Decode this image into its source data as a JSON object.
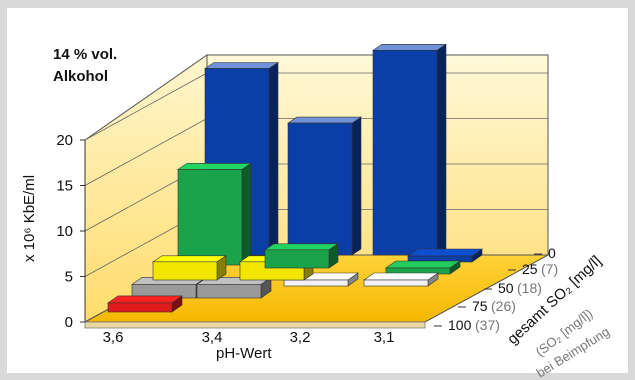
{
  "chart_data": {
    "type": "bar",
    "title": "14 % vol. Alkohol",
    "ylabel": "x 10⁶ KbE/ml",
    "xlabel": "pH-Wert",
    "zlabel": "gesamt SO₂ [mg/l]",
    "zlabel_sub": "(SO₂ [mg/l] bei Beimpfung)",
    "ylim": [
      0,
      20
    ],
    "yticks": [
      "0",
      "5",
      "10",
      "15",
      "20"
    ],
    "categories": [
      "3,6",
      "3,4",
      "3,2",
      "3,1"
    ],
    "series": [
      {
        "name": "0",
        "values": [
          null,
          null,
          null,
          0.3
        ],
        "color": "#0b3fa8",
        "sublabel": ""
      },
      {
        "name": "25",
        "values": [
          null,
          null,
          null,
          0.3
        ],
        "color": "#1aa34a",
        "sublabel": "(7)"
      },
      {
        "name": "50",
        "values": [
          null,
          null,
          0.3,
          0.3
        ],
        "color": "#f2f2f2",
        "sublabel": "(18)"
      },
      {
        "name": "75",
        "values": [
          1.5,
          1.5,
          null,
          null
        ],
        "color": "#9a9a9a",
        "sublabel": "(26)"
      },
      {
        "name": "100",
        "values": [
          1.0,
          null,
          null,
          null
        ],
        "color": "#e01b1b",
        "sublabel": "(37)"
      }
    ],
    "front_bars": [
      {
        "category": "3,4",
        "value": 10.5,
        "color": "#1aa34a"
      },
      {
        "category": "3,6",
        "value": 2,
        "color": "#f2e600"
      },
      {
        "category": "3,4",
        "value": 2,
        "color": "#f2e600"
      },
      {
        "category": "3,2",
        "value": 2,
        "color": "#1aa34a"
      }
    ],
    "back_bars": [
      {
        "category": "3,4",
        "value": 20.5,
        "color": "#0b3fa8"
      },
      {
        "category": "3,2",
        "value": 14.5,
        "color": "#0b3fa8"
      },
      {
        "category": "3,1",
        "value": 22.5,
        "color": "#0b3fa8"
      }
    ]
  }
}
